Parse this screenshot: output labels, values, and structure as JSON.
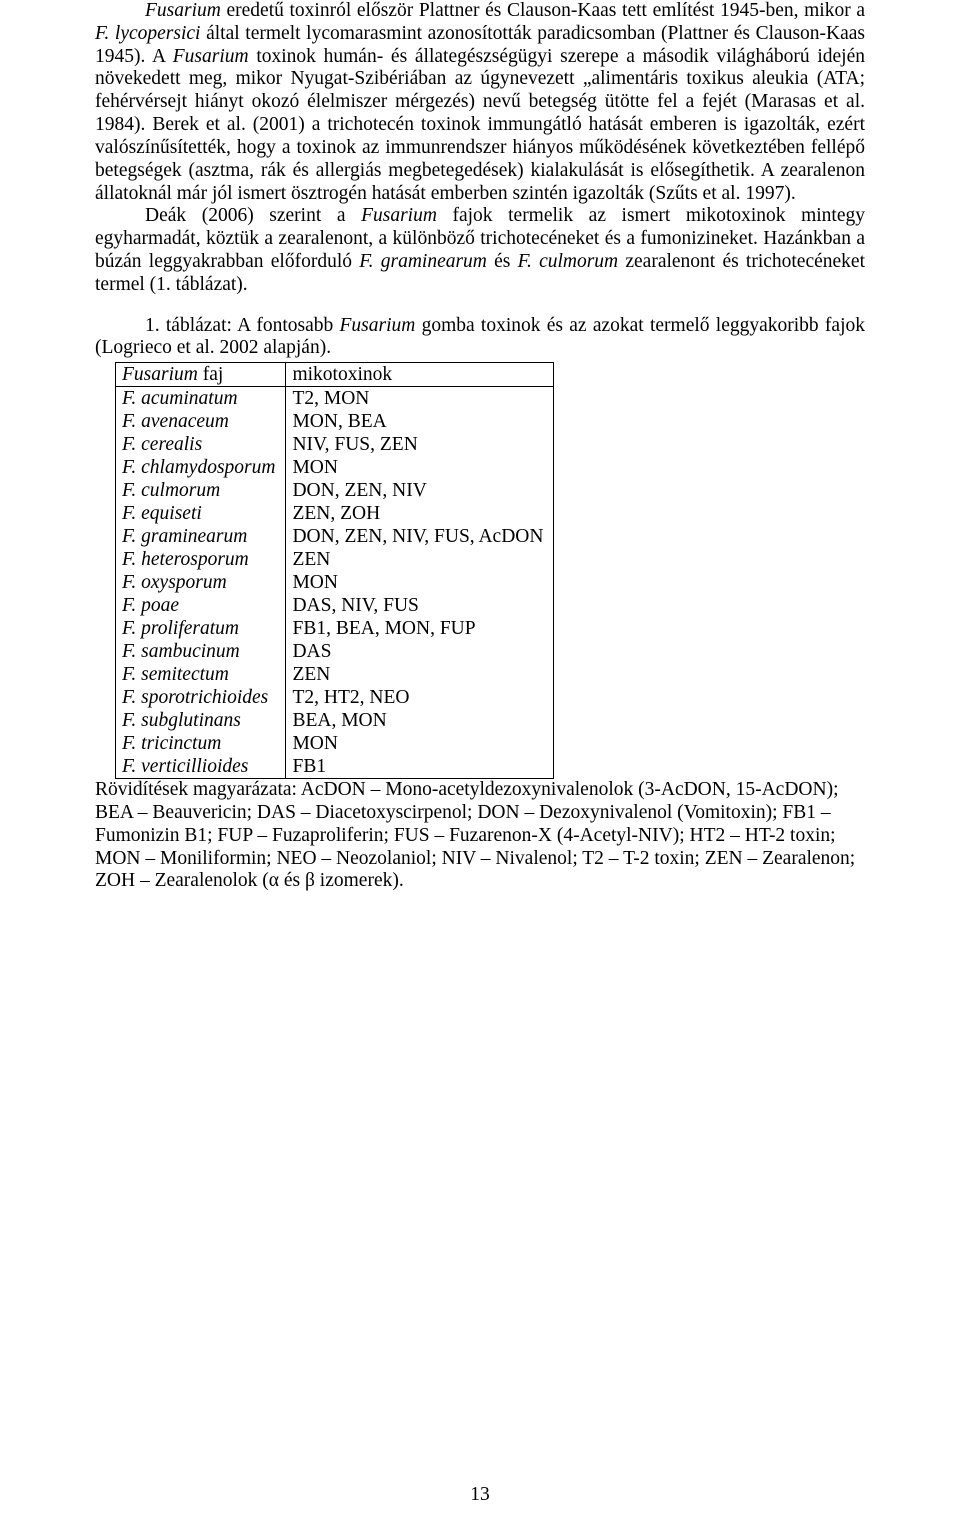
{
  "para1": {
    "seg1": "Fusarium",
    "seg2": " eredetű toxinról először Plattner és Clauson-Kaas tett említést 1945-ben, mikor a ",
    "seg3": "F. lycopersici",
    "seg4": " által termelt lycomarasmint azonosították paradicsomban (Plattner és Clauson-Kaas 1945). A ",
    "seg5": "Fusarium",
    "seg6": " toxinok humán- és állategészségügyi szerepe a második világháború idején növekedett meg, mikor Nyugat-Szibériában az úgynevezett „alimentáris toxikus aleukia (ATA; fehérvérsejt hiányt okozó élelmiszer mérgezés) nevű betegség ütötte fel a fejét (Marasas et al. 1984). Berek et al. (2001) a trichotecén toxinok immungátló hatását emberen is igazolták, ezért valószínűsítették, hogy a toxinok az immunrendszer hiányos működésének következtében fellépő betegségek (asztma, rák és allergiás megbetegedések) kialakulását is elősegíthetik. A zearalenon állatoknál már jól ismert ösztrogén hatását emberben szintén igazolták (Szűts et al. 1997)."
  },
  "para2": {
    "seg1": "Deák (2006) szerint a ",
    "seg2": "Fusarium",
    "seg3": " fajok termelik az ismert mikotoxinok mintegy egyharmadát, köztük a zearalenont, a különböző trichotecéneket és a fumonizineket. Hazánkban a búzán leggyakrabban előforduló ",
    "seg4": "F. graminearum",
    "seg5": " és ",
    "seg6": "F. culmorum",
    "seg7": " zearalenont és trichotecéneket termel (1. táblázat)."
  },
  "tableCaption": {
    "seg1": "1. táblázat: A fontosabb ",
    "seg2": "Fusarium",
    "seg3": " gomba toxinok és az azokat termelő leggyakoribb fajok (Logrieco et al. 2002 alapján)."
  },
  "table": {
    "col1": "Fusarium faj",
    "col1_italic_prefix": "Fusarium",
    "col1_suffix": " faj",
    "col2": "mikotoxinok",
    "rows": [
      {
        "sp": "F. acuminatum",
        "tox": "T2, MON"
      },
      {
        "sp": "F. avenaceum",
        "tox": "MON, BEA"
      },
      {
        "sp": "F. cerealis",
        "tox": "NIV, FUS, ZEN"
      },
      {
        "sp": "F. chlamydosporum",
        "tox": "MON"
      },
      {
        "sp": "F. culmorum",
        "tox": "DON, ZEN, NIV"
      },
      {
        "sp": "F. equiseti",
        "tox": "ZEN, ZOH"
      },
      {
        "sp": "F. graminearum",
        "tox": "DON, ZEN, NIV, FUS, AcDON"
      },
      {
        "sp": "F. heterosporum",
        "tox": "ZEN"
      },
      {
        "sp": "F. oxysporum",
        "tox": "MON"
      },
      {
        "sp": "F. poae",
        "tox": "DAS, NIV, FUS"
      },
      {
        "sp": "F. proliferatum",
        "tox": "FB1, BEA, MON, FUP"
      },
      {
        "sp": "F. sambucinum",
        "tox": "DAS"
      },
      {
        "sp": "F. semitectum",
        "tox": "ZEN"
      },
      {
        "sp": "F. sporotrichioides",
        "tox": "T2, HT2, NEO"
      },
      {
        "sp": "F. subglutinans",
        "tox": "BEA, MON"
      },
      {
        "sp": "F. tricinctum",
        "tox": "MON"
      },
      {
        "sp": "F. verticillioides",
        "tox": "FB1"
      }
    ]
  },
  "abbr": "Rövidítések magyarázata: AcDON – Mono-acetyldezoxynivalenolok (3-AcDON, 15-AcDON); BEA – Beauvericin; DAS – Diacetoxyscirpenol; DON – Dezoxynivalenol (Vomitoxin); FB1 – Fumonizin B1; FUP – Fuzaproliferin; FUS – Fuzarenon-X (4-Acetyl-NIV); HT2 – HT-2 toxin; MON – Moniliformin; NEO – Neozolaniol; NIV – Nivalenol; T2 – T-2 toxin; ZEN – Zearalenon; ZOH – Zearalenolok (α és β izomerek).",
  "pageNumber": "13"
}
